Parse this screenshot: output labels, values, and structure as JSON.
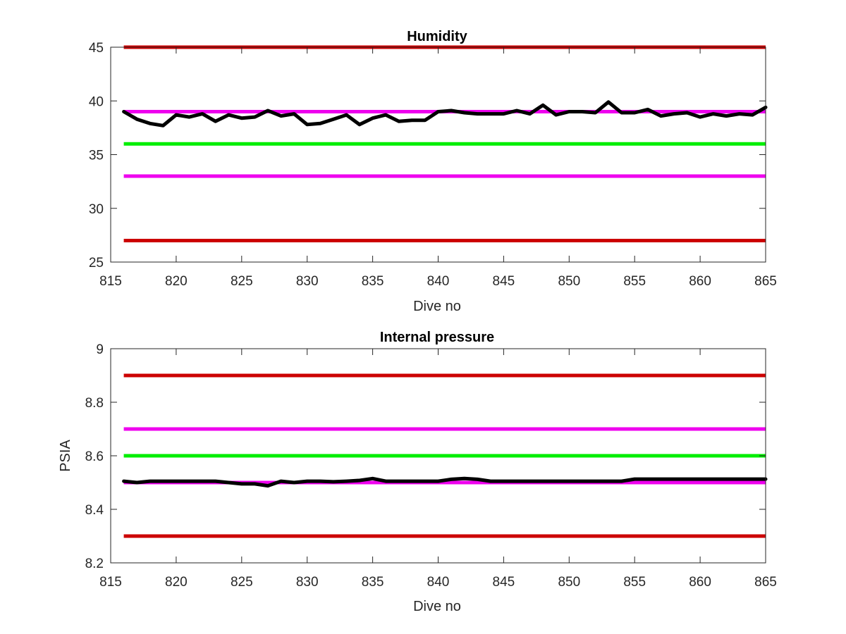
{
  "colors": {
    "red": "#cc0000",
    "magenta": "#ee00ee",
    "green": "#00ee00",
    "black": "#000000",
    "axis": "#262626"
  },
  "chart_data": [
    {
      "type": "line",
      "title": "Humidity",
      "xlabel": "Dive no",
      "ylabel": "",
      "xlim": [
        815,
        865
      ],
      "ylim": [
        25,
        45
      ],
      "xticks": [
        815,
        820,
        825,
        830,
        835,
        840,
        845,
        850,
        855,
        860,
        865
      ],
      "yticks": [
        25,
        30,
        35,
        40,
        45
      ],
      "grid": false,
      "reference_lines": [
        {
          "y": 45,
          "color": "red",
          "x": [
            816,
            865
          ]
        },
        {
          "y": 39,
          "color": "magenta",
          "x": [
            816,
            865
          ]
        },
        {
          "y": 36,
          "color": "green",
          "x": [
            816,
            865
          ]
        },
        {
          "y": 33,
          "color": "magenta",
          "x": [
            816,
            865
          ]
        },
        {
          "y": 27,
          "color": "red",
          "x": [
            816,
            865
          ]
        }
      ],
      "series": [
        {
          "color": "black",
          "x": [
            816,
            817,
            818,
            819,
            820,
            821,
            822,
            823,
            824,
            825,
            826,
            827,
            828,
            829,
            830,
            831,
            832,
            833,
            834,
            835,
            836,
            837,
            838,
            839,
            840,
            841,
            842,
            843,
            844,
            845,
            846,
            847,
            848,
            849,
            850,
            851,
            852,
            853,
            854,
            855,
            856,
            857,
            858,
            859,
            860,
            861,
            862,
            863,
            864,
            865
          ],
          "y": [
            39.0,
            38.3,
            37.9,
            37.7,
            38.7,
            38.5,
            38.8,
            38.1,
            38.7,
            38.4,
            38.5,
            39.1,
            38.6,
            38.8,
            37.8,
            37.9,
            38.3,
            38.7,
            37.8,
            38.4,
            38.7,
            38.1,
            38.2,
            38.2,
            39.0,
            39.1,
            38.9,
            38.8,
            38.8,
            38.8,
            39.1,
            38.8,
            39.6,
            38.7,
            39.0,
            39.0,
            38.9,
            39.9,
            38.9,
            38.9,
            39.2,
            38.6,
            38.8,
            38.9,
            38.5,
            38.8,
            38.6,
            38.8,
            38.7,
            39.4
          ]
        }
      ]
    },
    {
      "type": "line",
      "title": "Internal pressure",
      "xlabel": "Dive no",
      "ylabel": "PSIA",
      "xlim": [
        815,
        865
      ],
      "ylim": [
        8.2,
        9
      ],
      "xticks": [
        815,
        820,
        825,
        830,
        835,
        840,
        845,
        850,
        855,
        860,
        865
      ],
      "yticks": [
        8.2,
        8.4,
        8.6,
        8.8,
        9
      ],
      "ytick_labels": [
        "8.2",
        "8.4",
        "8.6",
        "8.8",
        "9"
      ],
      "grid": false,
      "reference_lines": [
        {
          "y": 8.9,
          "color": "red",
          "x": [
            816,
            865
          ]
        },
        {
          "y": 8.7,
          "color": "magenta",
          "x": [
            816,
            865
          ]
        },
        {
          "y": 8.6,
          "color": "green",
          "x": [
            816,
            865
          ]
        },
        {
          "y": 8.5,
          "color": "magenta",
          "x": [
            816,
            865
          ]
        },
        {
          "y": 8.3,
          "color": "red",
          "x": [
            816,
            865
          ]
        }
      ],
      "series": [
        {
          "color": "black",
          "x": [
            816,
            817,
            818,
            819,
            820,
            821,
            822,
            823,
            824,
            825,
            826,
            827,
            828,
            829,
            830,
            831,
            832,
            833,
            834,
            835,
            836,
            837,
            838,
            839,
            840,
            841,
            842,
            843,
            844,
            845,
            846,
            847,
            848,
            849,
            850,
            851,
            852,
            853,
            854,
            855,
            856,
            857,
            858,
            859,
            860,
            861,
            862,
            863,
            864,
            865
          ],
          "y": [
            8.505,
            8.5,
            8.505,
            8.505,
            8.505,
            8.505,
            8.505,
            8.505,
            8.5,
            8.495,
            8.495,
            8.488,
            8.505,
            8.5,
            8.505,
            8.505,
            8.503,
            8.505,
            8.508,
            8.515,
            8.505,
            8.505,
            8.505,
            8.505,
            8.505,
            8.512,
            8.515,
            8.512,
            8.505,
            8.505,
            8.505,
            8.505,
            8.505,
            8.505,
            8.505,
            8.505,
            8.505,
            8.505,
            8.505,
            8.513,
            8.513,
            8.513,
            8.513,
            8.513,
            8.513,
            8.513,
            8.513,
            8.513,
            8.513,
            8.513
          ]
        }
      ]
    }
  ]
}
